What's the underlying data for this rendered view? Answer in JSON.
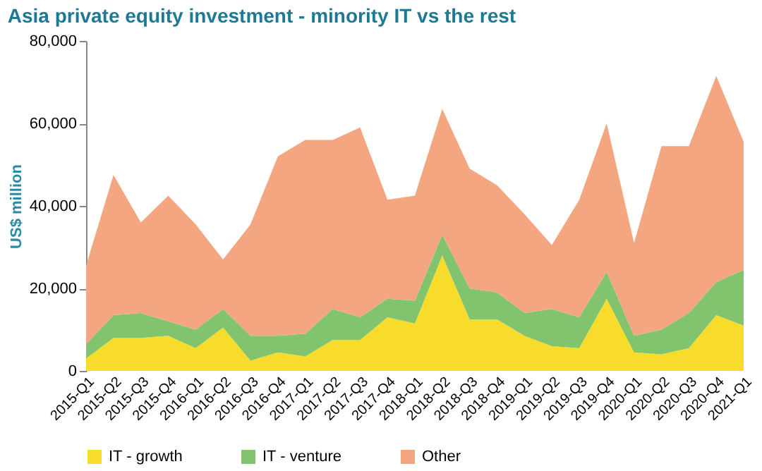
{
  "chart_data": {
    "type": "area",
    "title": "Asia private equity investment - minority IT vs the rest",
    "ylabel": "US$ million",
    "categories": [
      "2015-Q1",
      "2015-Q2",
      "2015-Q3",
      "2015-Q4",
      "2016-Q1",
      "2016-Q2",
      "2016-Q3",
      "2016-Q4",
      "2017-Q1",
      "2017-Q2",
      "2017-Q3",
      "2017-Q4",
      "2018-Q1",
      "2018-Q2",
      "2018-Q3",
      "2018-Q4",
      "2019-Q1",
      "2019-Q2",
      "2019-Q3",
      "2019-Q4",
      "2020-Q1",
      "2020-Q2",
      "2020-Q3",
      "2020-Q4",
      "2021-Q1"
    ],
    "stacked": true,
    "series": [
      {
        "name": "IT - growth",
        "color": "#f7dc2c",
        "values": [
          3000,
          8000,
          8000,
          8500,
          5500,
          10500,
          2500,
          4500,
          3500,
          7500,
          7500,
          13000,
          11500,
          28000,
          12500,
          12500,
          8500,
          6000,
          5500,
          17500,
          4500,
          4000,
          5500,
          13500,
          11000
        ]
      },
      {
        "name": "IT - venture",
        "color": "#82c36e",
        "values": [
          3500,
          5500,
          6000,
          3500,
          4500,
          4500,
          6000,
          4000,
          5500,
          7500,
          5500,
          4500,
          5500,
          5000,
          7500,
          6500,
          5500,
          9000,
          7500,
          6500,
          4000,
          6000,
          8500,
          8000,
          13500
        ]
      },
      {
        "name": "Other",
        "color": "#f4a680",
        "values": [
          19000,
          34000,
          22000,
          30500,
          25500,
          12000,
          27000,
          43500,
          47000,
          41000,
          46000,
          24000,
          25500,
          30500,
          29000,
          26000,
          24000,
          15500,
          28500,
          36000,
          22500,
          44500,
          40500,
          50000,
          31000
        ]
      }
    ],
    "ylim": [
      0,
      80000
    ],
    "yticks": [
      0,
      {
        "value": 20000,
        "label": "20,000"
      },
      {
        "value": 40000,
        "label": "40,000"
      },
      {
        "value": 60000,
        "label": "60,000"
      },
      {
        "value": 80000,
        "label": "80,000"
      }
    ],
    "grid": false,
    "legend": "bottom"
  }
}
